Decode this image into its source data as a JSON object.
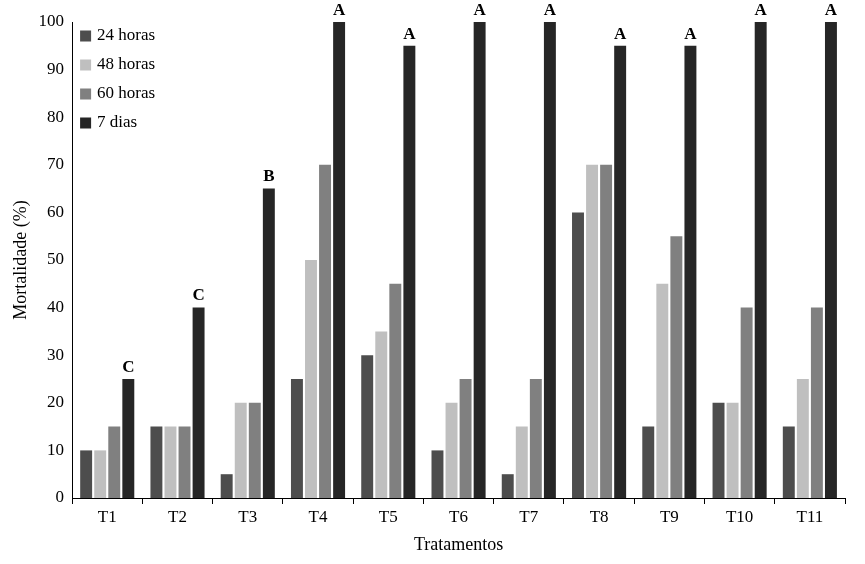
{
  "chart_data": {
    "type": "bar",
    "x_label": "Tratamentos",
    "y_label": "Mortalidade (%)",
    "categories": [
      "T1",
      "T2",
      "T3",
      "T4",
      "T5",
      "T6",
      "T7",
      "T8",
      "T9",
      "T10",
      "T11"
    ],
    "series": [
      {
        "name": "24 horas",
        "color": "#4d4d4d",
        "values": [
          10,
          15,
          5,
          25,
          30,
          10,
          5,
          60,
          15,
          20,
          15
        ]
      },
      {
        "name": "48 horas",
        "color": "#bfbfbf",
        "values": [
          10,
          15,
          20,
          50,
          35,
          20,
          15,
          70,
          45,
          20,
          25
        ]
      },
      {
        "name": "60 horas",
        "color": "#808080",
        "values": [
          15,
          15,
          20,
          70,
          45,
          25,
          25,
          70,
          55,
          40,
          40
        ]
      },
      {
        "name": "7 dias",
        "color": "#262626",
        "values": [
          25,
          40,
          65,
          100,
          95,
          100,
          100,
          95,
          95,
          100,
          100
        ]
      }
    ],
    "annotations": {
      "series": "7 dias",
      "labels": [
        "C",
        "C",
        "B",
        "A",
        "A",
        "A",
        "A",
        "A",
        "A",
        "A",
        "A"
      ]
    },
    "ylim": [
      0,
      100
    ],
    "yticks": [
      0,
      10,
      20,
      30,
      40,
      50,
      60,
      70,
      80,
      90,
      100
    ],
    "grid": false,
    "legend": "upper left"
  }
}
